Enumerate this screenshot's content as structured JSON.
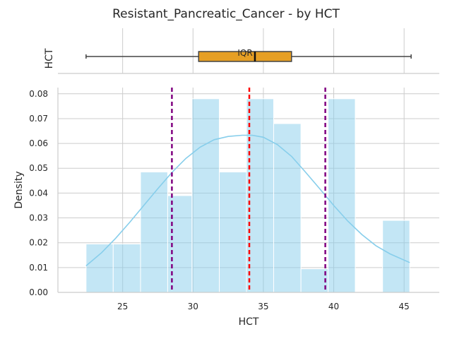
{
  "figure": {
    "title": "Resistant_Pancreatic_Cancer - by HCT"
  },
  "chart_data": [
    {
      "type": "box",
      "orientation": "horizontal",
      "ylabel": "HCT",
      "whisker_low": 22.4,
      "q1": 30.4,
      "median": 34.4,
      "q3": 37.0,
      "whisker_high": 45.5,
      "annotation": "IQR",
      "box_color": "#e69f24",
      "xlim": [
        20.4,
        47.5
      ]
    },
    {
      "type": "histogram",
      "title": "",
      "xlabel": "HCT",
      "ylabel": "Density",
      "xlim": [
        20.4,
        47.5
      ],
      "ylim": [
        0,
        0.0825
      ],
      "xticks": [
        25,
        30,
        35,
        40,
        45
      ],
      "yticks": [
        0.0,
        0.01,
        0.02,
        0.03,
        0.04,
        0.05,
        0.06,
        0.07,
        0.08
      ],
      "bin_edges": [
        22.4,
        24.33,
        26.27,
        28.2,
        29.93,
        31.87,
        33.8,
        35.73,
        37.67,
        39.6,
        41.53,
        43.47,
        45.4
      ],
      "densities": [
        0.0195,
        0.0195,
        0.0485,
        0.039,
        0.078,
        0.0485,
        0.078,
        0.068,
        0.0095,
        0.078,
        0.0,
        0.029
      ],
      "bar_color": "#87ceeb",
      "kde_color": "#87ceeb",
      "kde": {
        "x": [
          22.4,
          23.5,
          24.5,
          25.5,
          26.5,
          27.5,
          28.5,
          29.5,
          30.5,
          31.5,
          32.5,
          33.5,
          34.2,
          35,
          36,
          37,
          38,
          39,
          40,
          41,
          42,
          43,
          44,
          45.4
        ],
        "y": [
          0.0107,
          0.016,
          0.0218,
          0.0282,
          0.035,
          0.0418,
          0.0483,
          0.054,
          0.0585,
          0.0615,
          0.0628,
          0.0633,
          0.0633,
          0.0625,
          0.0595,
          0.0548,
          0.0484,
          0.0418,
          0.035,
          0.0287,
          0.0233,
          0.0188,
          0.0155,
          0.012
        ]
      },
      "vlines": [
        {
          "x": 28.5,
          "color": "#800080",
          "style": "dashed"
        },
        {
          "x": 34.0,
          "color": "#ff0000",
          "style": "dashed"
        },
        {
          "x": 39.4,
          "color": "#800080",
          "style": "dashed"
        }
      ],
      "grid": true
    }
  ]
}
